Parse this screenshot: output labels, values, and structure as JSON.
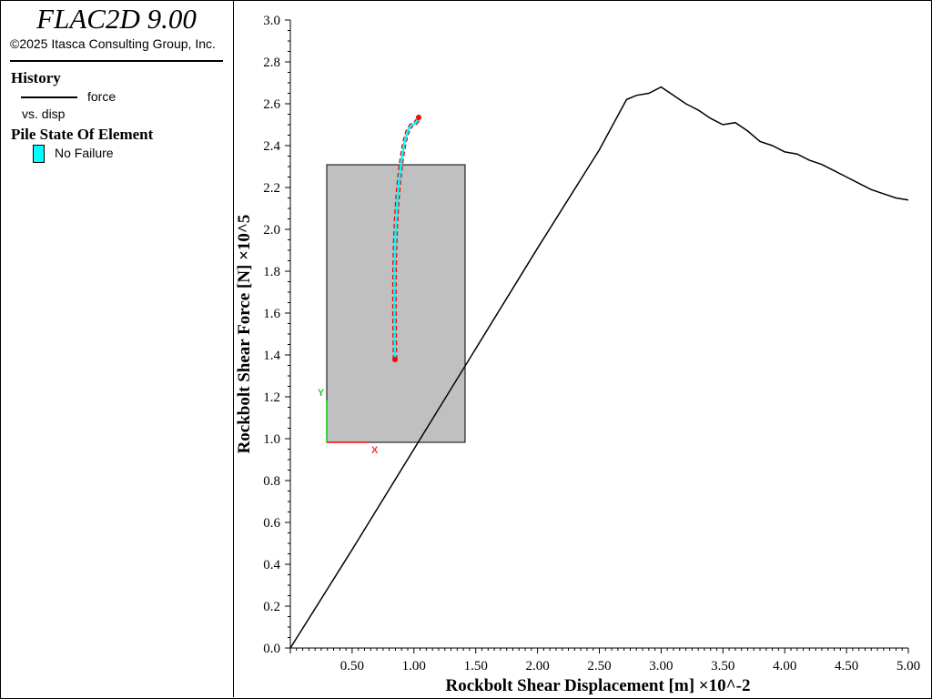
{
  "app": {
    "title": "FLAC2D 9.00",
    "copyright": "©2025 Itasca Consulting Group, Inc."
  },
  "legend": {
    "history_heading": "History",
    "history_name": "force",
    "history_sub": "vs. disp",
    "pile_heading": "Pile State Of Element",
    "pile_state": "No Failure",
    "pile_color": "#00ffff"
  },
  "inset": {
    "fill": "#c0c0c0",
    "axis_x_label": "X",
    "axis_y_label": "Y",
    "axis_x_color": "#ff0000",
    "axis_y_color": "#00cc00",
    "pile_node_color": "#ff0000",
    "pile_color": "#00ffff"
  },
  "chart_data": {
    "type": "line",
    "xlabel": "Rockbolt Shear Displacement [m] ×10^-2",
    "ylabel": "Rockbolt Shear Force [N] ×10^5",
    "xlim": [
      0,
      5.0
    ],
    "ylim": [
      0,
      3.0
    ],
    "xticks": [
      "0.50",
      "1.00",
      "1.50",
      "2.00",
      "2.50",
      "3.00",
      "3.50",
      "4.00",
      "4.50",
      "5.00"
    ],
    "yticks": [
      "0.0",
      "0.2",
      "0.4",
      "0.6",
      "0.8",
      "1.0",
      "1.2",
      "1.4",
      "1.6",
      "1.8",
      "2.0",
      "2.2",
      "2.4",
      "2.6",
      "2.8",
      "3.0"
    ],
    "series": [
      {
        "name": "force",
        "color": "#000000",
        "x": [
          0.0,
          0.5,
          1.0,
          1.5,
          2.0,
          2.5,
          2.72,
          2.8,
          2.9,
          3.0,
          3.1,
          3.2,
          3.3,
          3.4,
          3.5,
          3.6,
          3.7,
          3.8,
          3.9,
          4.0,
          4.1,
          4.2,
          4.3,
          4.4,
          4.5,
          4.6,
          4.7,
          4.8,
          4.9,
          5.0
        ],
        "y": [
          0.0,
          0.47,
          0.95,
          1.43,
          1.91,
          2.38,
          2.62,
          2.64,
          2.65,
          2.68,
          2.64,
          2.6,
          2.57,
          2.53,
          2.5,
          2.51,
          2.47,
          2.42,
          2.4,
          2.37,
          2.36,
          2.33,
          2.31,
          2.28,
          2.25,
          2.22,
          2.19,
          2.17,
          2.15,
          2.14
        ]
      }
    ],
    "grid": false
  }
}
